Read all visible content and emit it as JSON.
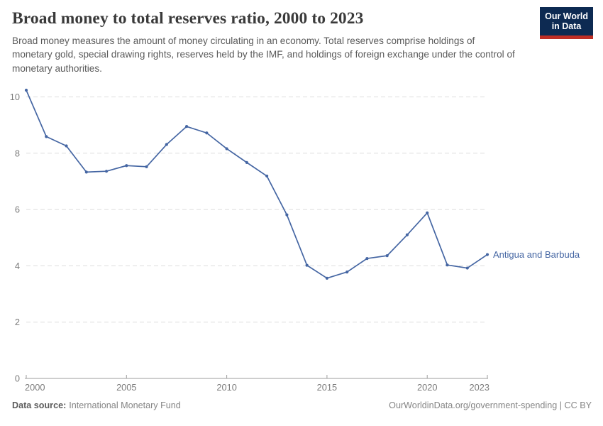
{
  "header": {
    "title": "Broad money to total reserves ratio, 2000 to 2023",
    "subtitle": "Broad money measures the amount of money circulating in an economy. Total reserves comprise holdings of monetary gold, special drawing rights, reserves held by the IMF, and holdings of foreign exchange under the control of monetary authorities.",
    "logo_line1": "Our World",
    "logo_line2": "in Data"
  },
  "chart_data": {
    "type": "line",
    "title": "Broad money to total reserves ratio, 2000 to 2023",
    "x": [
      2000,
      2001,
      2002,
      2003,
      2004,
      2005,
      2006,
      2007,
      2008,
      2009,
      2010,
      2011,
      2012,
      2013,
      2014,
      2015,
      2016,
      2017,
      2018,
      2019,
      2020,
      2021,
      2022,
      2023
    ],
    "series": [
      {
        "name": "Antigua and Barbuda",
        "color": "#4566a3",
        "values": [
          10.24,
          8.59,
          8.26,
          7.33,
          7.36,
          7.56,
          7.52,
          8.31,
          8.95,
          8.72,
          8.16,
          7.67,
          7.19,
          5.81,
          4.02,
          3.56,
          3.78,
          4.26,
          4.36,
          5.1,
          5.88,
          4.03,
          3.92,
          4.4
        ]
      }
    ],
    "x_ticks": [
      2000,
      2005,
      2010,
      2015,
      2020,
      2023
    ],
    "y_ticks": [
      0,
      2,
      4,
      6,
      8,
      10
    ],
    "xlim": [
      2000,
      2023
    ],
    "ylim": [
      0,
      10.5
    ],
    "grid": "horizontal-dashed",
    "legend": "end-of-line-label",
    "end_label": "Antigua and Barbuda",
    "xlabel": "",
    "ylabel": ""
  },
  "footer": {
    "source_label": "Data source:",
    "source_value": "International Monetary Fund",
    "attribution": "OurWorldinData.org/government-spending | CC BY"
  },
  "colors": {
    "series": "#4566a3",
    "grid": "#dddddd",
    "axis": "#9e9e9e",
    "tick_label": "#7c7c7c",
    "title": "#3a3a3a",
    "subtitle": "#5a5a5a",
    "footer": "#858585",
    "logo_bg": "#0d2a52",
    "logo_red": "#bf2e25"
  }
}
